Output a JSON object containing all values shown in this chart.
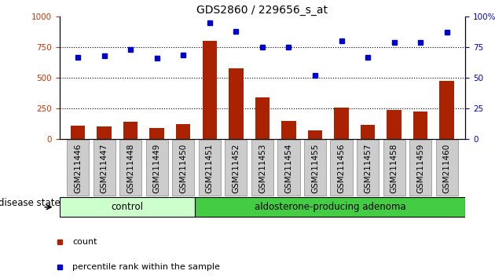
{
  "title": "GDS2860 / 229656_s_at",
  "samples": [
    "GSM211446",
    "GSM211447",
    "GSM211448",
    "GSM211449",
    "GSM211450",
    "GSM211451",
    "GSM211452",
    "GSM211453",
    "GSM211454",
    "GSM211455",
    "GSM211456",
    "GSM211457",
    "GSM211458",
    "GSM211459",
    "GSM211460"
  ],
  "counts": [
    110,
    105,
    140,
    90,
    120,
    800,
    580,
    340,
    150,
    70,
    255,
    115,
    235,
    225,
    475
  ],
  "percentiles": [
    67,
    68,
    73,
    66,
    69,
    95,
    88,
    75,
    75,
    52,
    80,
    67,
    79,
    79,
    87
  ],
  "control_count": 5,
  "adenoma_count": 10,
  "group_labels": [
    "control",
    "aldosterone-producing adenoma"
  ],
  "control_color": "#ccffcc",
  "adenoma_color": "#44cc44",
  "bar_color": "#aa2200",
  "dot_color": "#0000cc",
  "ylim_left": [
    0,
    1000
  ],
  "ylim_right": [
    0,
    100
  ],
  "yticks_left": [
    0,
    250,
    500,
    750,
    1000
  ],
  "yticks_right": [
    0,
    25,
    50,
    75,
    100
  ],
  "legend_count_label": "count",
  "legend_pct_label": "percentile rank within the sample",
  "disease_state_label": "disease state",
  "title_fontsize": 10,
  "tick_fontsize": 7.5,
  "label_fontsize": 8.5,
  "legend_fontsize": 8
}
